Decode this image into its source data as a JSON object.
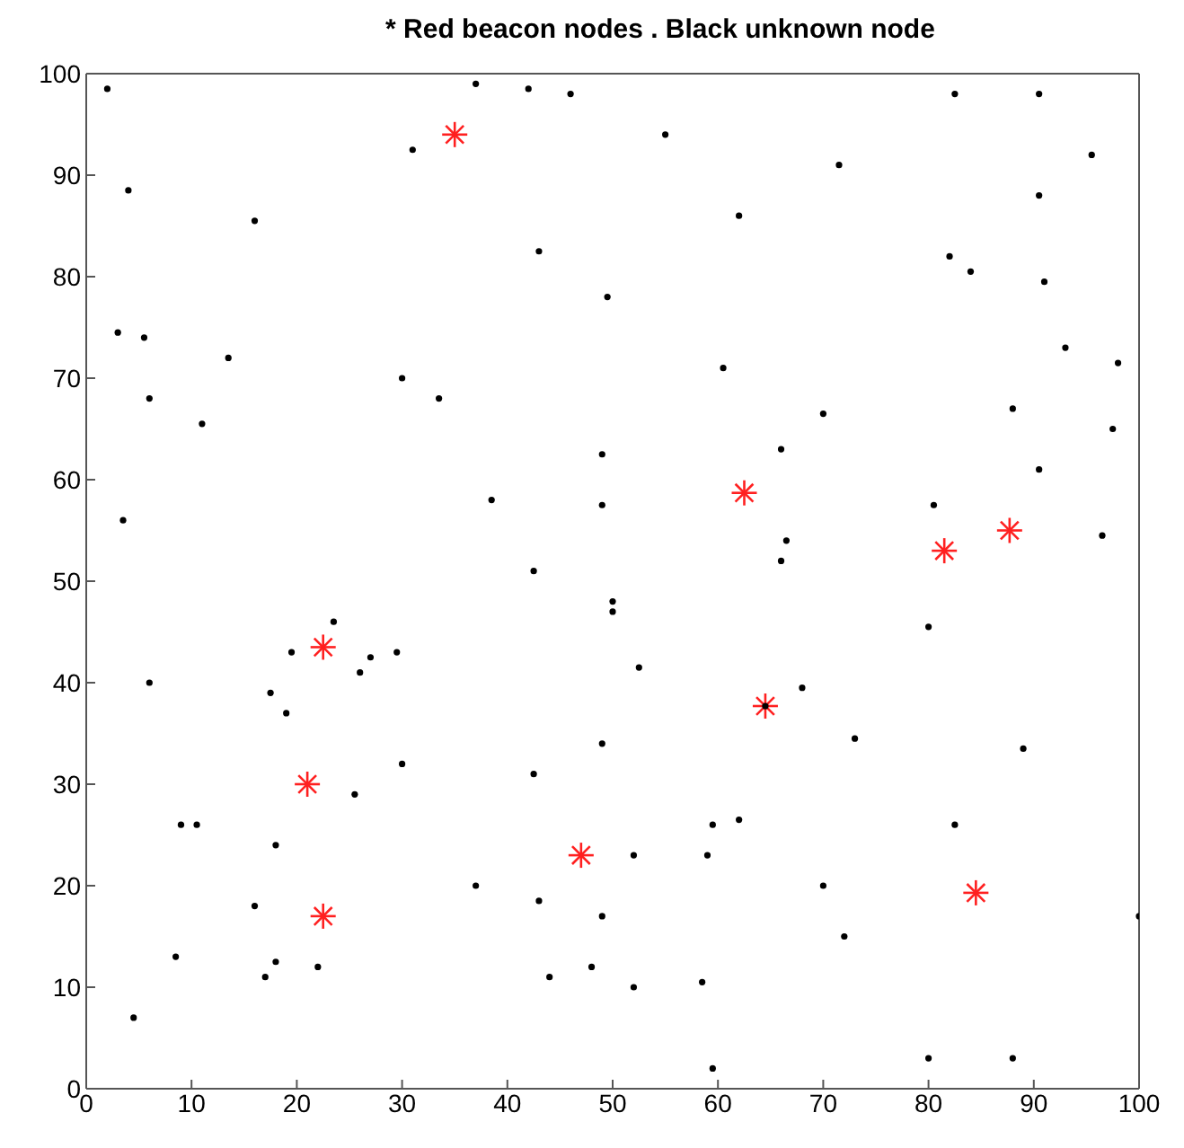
{
  "chart_data": {
    "type": "scatter",
    "title": "* Red beacon nodes . Black unknown node",
    "xlim": [
      0,
      100
    ],
    "ylim": [
      0,
      100
    ],
    "xticks": [
      0,
      10,
      20,
      30,
      40,
      50,
      60,
      70,
      80,
      90,
      100
    ],
    "yticks": [
      0,
      10,
      20,
      30,
      40,
      50,
      60,
      70,
      80,
      90,
      100
    ],
    "legend": false,
    "series": [
      {
        "color": "#000000",
        "marker": "circle",
        "x": [
          2,
          4,
          3,
          5.5,
          6,
          3.5,
          6,
          11,
          13.5,
          16,
          9,
          10.5,
          8.5,
          4.5,
          16,
          17,
          18,
          18,
          17.5,
          19,
          19.5,
          23.5,
          26,
          27,
          29.5,
          30,
          25.5,
          22,
          30,
          31,
          33.5,
          37,
          38.5,
          37,
          42,
          46,
          43,
          42.5,
          42.5,
          43,
          44,
          48,
          49,
          49,
          49,
          49,
          49.5,
          50,
          50,
          52,
          52,
          52.5,
          55,
          58.5,
          59,
          59.5,
          59.5,
          60.5,
          62,
          62,
          66,
          66,
          66.5,
          64.5,
          68,
          70,
          70,
          71.5,
          72,
          73,
          80.5,
          80,
          80,
          82,
          82.5,
          82.5,
          84,
          88,
          88,
          89,
          90.5,
          90.5,
          90.5,
          91,
          93,
          95.5,
          96.5,
          97.5,
          98,
          100
        ],
        "values": [
          98.5,
          88.5,
          74.5,
          74,
          68,
          56,
          40,
          65.5,
          72,
          85.5,
          26,
          26,
          13,
          7,
          18,
          11,
          12.5,
          24,
          39,
          37,
          43,
          46,
          41,
          42.5,
          43,
          32,
          29,
          12,
          70,
          92.5,
          68,
          99,
          58,
          20,
          98.5,
          98,
          82.5,
          51,
          31,
          18.5,
          11,
          12,
          17,
          34,
          57.5,
          62.5,
          78,
          48,
          47,
          23,
          10,
          41.5,
          94,
          10.5,
          23,
          26,
          2,
          71,
          86,
          26.5,
          63,
          52,
          54,
          37.7,
          39.5,
          66.5,
          20,
          91,
          15,
          34.5,
          57.5,
          45.5,
          3,
          82,
          26,
          98,
          80.5,
          67,
          3,
          33.5,
          98,
          61,
          88,
          79.5,
          73,
          92,
          54.5,
          65,
          71.5,
          17
        ]
      },
      {
        "color": "#ff2020",
        "marker": "cross",
        "x": [
          35,
          22.5,
          21,
          22.5,
          47,
          62.5,
          64.5,
          81.5,
          87.7,
          84.5
        ],
        "values": [
          94,
          43.5,
          30,
          17,
          23,
          58.7,
          37.7,
          53,
          55,
          19.3
        ]
      }
    ]
  }
}
